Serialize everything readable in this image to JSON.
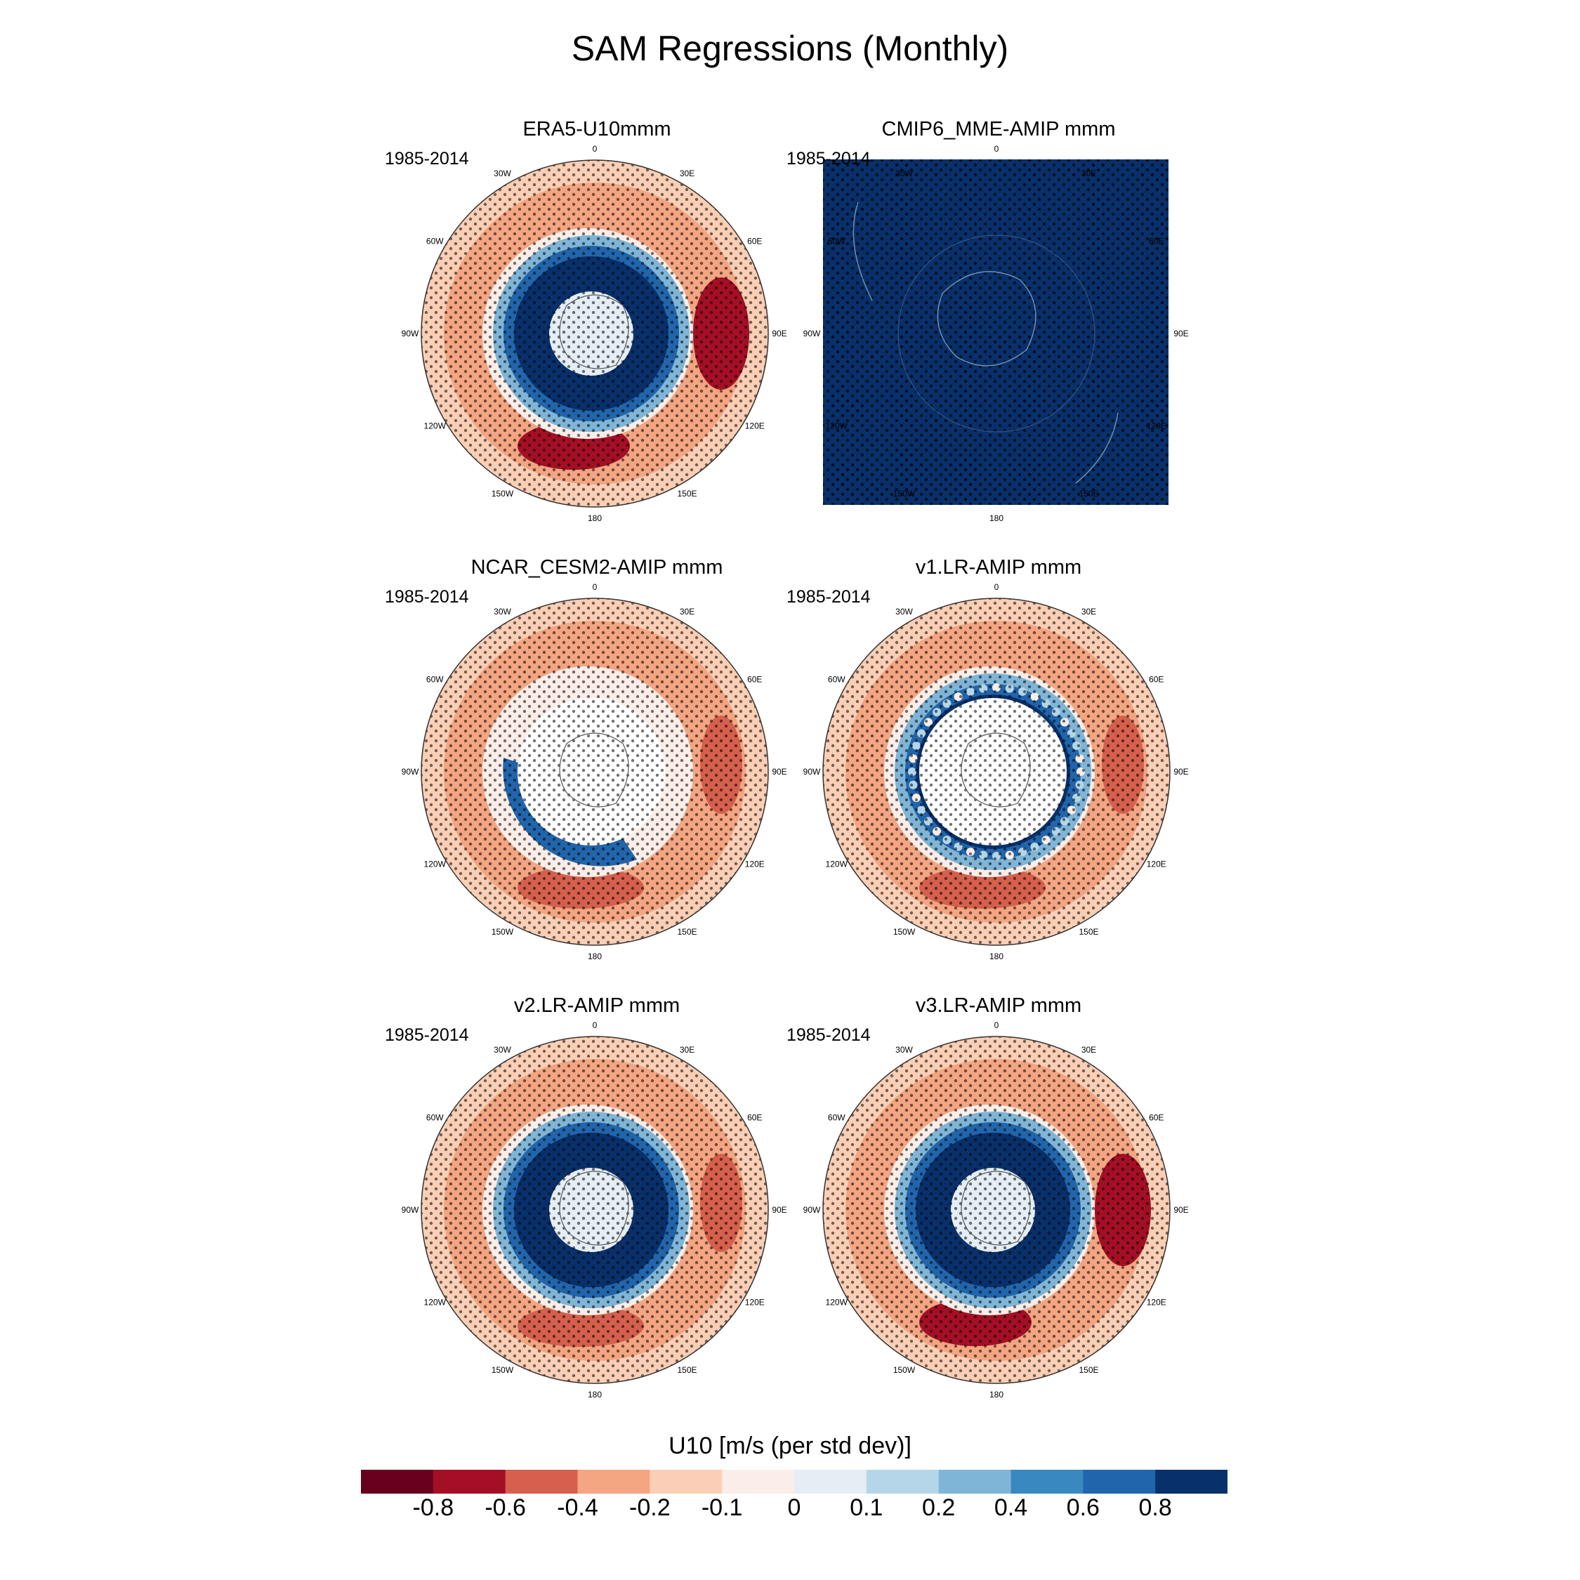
{
  "figure": {
    "title": "SAM Regressions (Monthly)",
    "lon_labels": [
      "0",
      "30E",
      "60E",
      "90E",
      "120E",
      "150E",
      "180",
      "150W",
      "120W",
      "90W",
      "60W",
      "30W"
    ]
  },
  "panels": [
    {
      "title": "ERA5-U10mmm",
      "period": "1985-2014",
      "map": "polar",
      "inner_ring": "blue",
      "outer_ring": "red"
    },
    {
      "title": "CMIP6_MME-AMIP  mmm",
      "period": "1985-2014",
      "map": "square-filled",
      "fill_color": "#08306b"
    },
    {
      "title": "NCAR_CESM2-AMIP  mmm",
      "period": "1985-2014",
      "map": "polar",
      "inner_ring": "blue-partial",
      "outer_ring": "red",
      "masked_center": true
    },
    {
      "title": "v1.LR-AMIP  mmm",
      "period": "1985-2014",
      "map": "polar",
      "inner_ring": "blue-noisy",
      "outer_ring": "red",
      "masked_center": true
    },
    {
      "title": "v2.LR-AMIP  mmm",
      "period": "1985-2014",
      "map": "polar",
      "inner_ring": "blue",
      "outer_ring": "red"
    },
    {
      "title": "v3.LR-AMIP  mmm",
      "period": "1985-2014",
      "map": "polar",
      "inner_ring": "blue",
      "outer_ring": "red"
    }
  ],
  "colorbar": {
    "title": "U10 [m/s (per std dev)]",
    "colors": [
      "#67001f",
      "#a50f25",
      "#d6604d",
      "#f4a582",
      "#fbcfb5",
      "#fbeee8",
      "#e4eef4",
      "#b4d6e8",
      "#7fb6d8",
      "#3a88c0",
      "#2166ac",
      "#08306b"
    ],
    "labels": [
      "-0.8",
      "-0.6",
      "-0.4",
      "-0.2",
      "-0.1",
      "0",
      "0.1",
      "0.2",
      "0.4",
      "0.6",
      "0.8"
    ]
  }
}
